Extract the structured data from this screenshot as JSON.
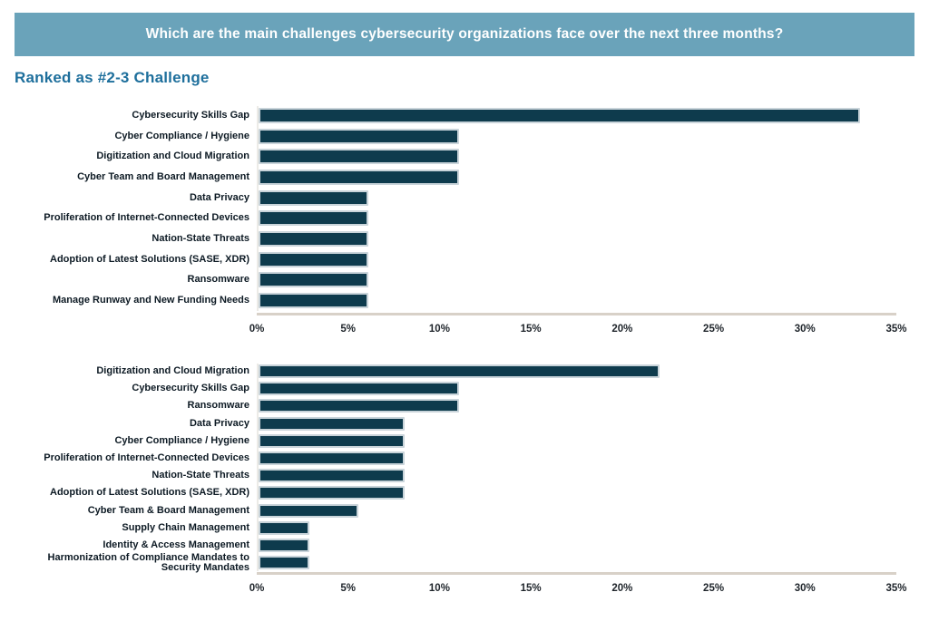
{
  "header": {
    "title": "Which are the main challenges cybersecurity organizations face over the next three months?"
  },
  "section": {
    "subtitle": "Ranked as #2-3 Challenge"
  },
  "colors": {
    "background": "#ffffff",
    "band": "#6aa3ba",
    "title_text": "#ffffff",
    "subtitle_text": "#1e6f9c",
    "bar_fill": "#0e3b4d",
    "bar_border": "#c9d4da",
    "axis_line": "#d8d1c8",
    "y_axis_line": "#ecebe7",
    "label_text": "#0d1a24",
    "tick_text": "#20262c"
  },
  "chart_data": [
    {
      "type": "bar",
      "orientation": "horizontal",
      "title": "",
      "unit": "%",
      "xlim": [
        0,
        35
      ],
      "xticks": [
        "0%",
        "5%",
        "10%",
        "15%",
        "20%",
        "25%",
        "30%",
        "35%"
      ],
      "grid": false,
      "legend": false,
      "categories": [
        "Cybersecurity Skills Gap",
        "Cyber Compliance / Hygiene",
        "Digitization and Cloud Migration",
        "Cyber Team and Board Management",
        "Data Privacy",
        "Proliferation of Internet-Connected Devices",
        "Nation-State Threats",
        "Adoption of Latest Solutions (SASE, XDR)",
        "Ransomware",
        "Manage Runway and New Funding Needs"
      ],
      "values": [
        33,
        11,
        11,
        11,
        6,
        6,
        6,
        6,
        6,
        6
      ]
    },
    {
      "type": "bar",
      "orientation": "horizontal",
      "title": "",
      "unit": "%",
      "xlim": [
        0,
        35
      ],
      "xticks": [
        "0%",
        "5%",
        "10%",
        "15%",
        "20%",
        "25%",
        "30%",
        "35%"
      ],
      "grid": false,
      "legend": false,
      "categories": [
        "Digitization and Cloud Migration",
        "Cybersecurity Skills Gap",
        "Ransomware",
        "Data Privacy",
        "Cyber Compliance / Hygiene",
        "Proliferation of Internet-Connected Devices",
        "Nation-State Threats",
        "Adoption of Latest Solutions (SASE, XDR)",
        "Cyber Team & Board Management",
        "Supply Chain Management",
        "Identity & Access Management",
        "Harmonization of Compliance Mandates to Security Mandates"
      ],
      "values": [
        22,
        11,
        11,
        8,
        8,
        8,
        8,
        8,
        5.5,
        2.8,
        2.8,
        2.8
      ]
    }
  ]
}
